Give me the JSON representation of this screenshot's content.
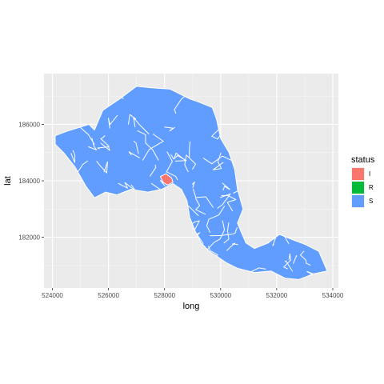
{
  "chart_data": {
    "type": "map",
    "xlabel": "long",
    "ylabel": "lat",
    "xlim": [
      523700,
      534200
    ],
    "ylim": [
      180200,
      187800
    ],
    "x_ticks": [
      524000,
      526000,
      528000,
      530000,
      532000,
      534000
    ],
    "x_tick_labels": [
      "524000",
      "526000",
      "528000",
      "530000",
      "532000",
      "534000"
    ],
    "y_ticks": [
      182000,
      184000,
      186000
    ],
    "y_tick_labels": [
      "182000",
      "184000",
      "186000"
    ],
    "grid": true,
    "legend": {
      "title": "status",
      "placement": "right",
      "entries": [
        {
          "label": "I",
          "color": "#F8766D"
        },
        {
          "label": "R",
          "color": "#00BA38"
        },
        {
          "label": "S",
          "color": "#619CFF"
        }
      ]
    },
    "regions": [
      {
        "status": "S",
        "outline": [
          [
            524100,
            185600
          ],
          [
            524500,
            185750
          ],
          [
            525300,
            186000
          ],
          [
            525500,
            185800
          ],
          [
            525800,
            186500
          ],
          [
            526400,
            186900
          ],
          [
            527000,
            187350
          ],
          [
            527500,
            187300
          ],
          [
            528200,
            187250
          ],
          [
            528900,
            186900
          ],
          [
            529200,
            186800
          ],
          [
            529700,
            186600
          ],
          [
            529850,
            186200
          ],
          [
            530000,
            185500
          ],
          [
            530300,
            185000
          ],
          [
            530500,
            184400
          ],
          [
            530600,
            183700
          ],
          [
            530800,
            183000
          ],
          [
            530600,
            182500
          ],
          [
            530900,
            181800
          ],
          [
            531200,
            181600
          ],
          [
            531700,
            181800
          ],
          [
            532100,
            182100
          ],
          [
            532600,
            181900
          ],
          [
            533000,
            181750
          ],
          [
            533500,
            181500
          ],
          [
            533800,
            180800
          ],
          [
            533300,
            180700
          ],
          [
            532800,
            180500
          ],
          [
            532300,
            180550
          ],
          [
            531800,
            180800
          ],
          [
            531200,
            180750
          ],
          [
            530600,
            180900
          ],
          [
            530200,
            181100
          ],
          [
            529900,
            181300
          ],
          [
            529600,
            181500
          ],
          [
            529300,
            181800
          ],
          [
            529100,
            182200
          ],
          [
            528900,
            182700
          ],
          [
            528800,
            183300
          ],
          [
            528600,
            183700
          ],
          [
            528300,
            183900
          ],
          [
            527900,
            183700
          ],
          [
            527400,
            183600
          ],
          [
            526800,
            183700
          ],
          [
            526300,
            183500
          ],
          [
            525900,
            183600
          ],
          [
            525500,
            183400
          ],
          [
            525200,
            183800
          ],
          [
            524800,
            184500
          ],
          [
            524400,
            185000
          ],
          [
            524100,
            185300
          ]
        ]
      },
      {
        "status": "I",
        "outline": [
          [
            527850,
            184150
          ],
          [
            528050,
            184250
          ],
          [
            528250,
            184100
          ],
          [
            528300,
            183950
          ],
          [
            528100,
            183850
          ],
          [
            527950,
            183950
          ]
        ]
      }
    ]
  }
}
